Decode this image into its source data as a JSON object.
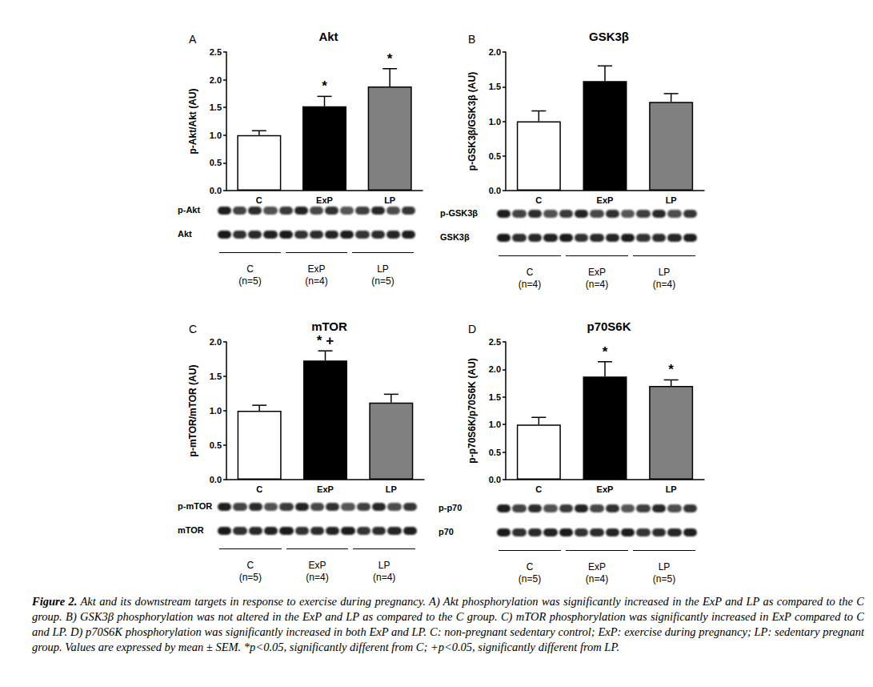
{
  "chart_data": [
    {
      "type": "bar",
      "panel": "A",
      "title": "Akt",
      "y_label": "p-Akt/Akt (AU)",
      "categories": [
        "C",
        "ExP",
        "LP"
      ],
      "values": [
        1.0,
        1.52,
        1.88
      ],
      "errors": [
        0.08,
        0.18,
        0.32
      ],
      "colors": [
        "#ffffff",
        "#000000",
        "#808080"
      ],
      "significance": [
        null,
        "*",
        "*"
      ],
      "ylim": [
        0,
        2.5
      ],
      "yticks": [
        {
          "value": 0,
          "label": "0.0"
        },
        0.5,
        {
          "value": 1,
          "label": "1.0"
        },
        1.5,
        {
          "value": 2,
          "label": "2.0"
        },
        2.5
      ],
      "grid": false,
      "blot": {
        "rows": [
          "p-Akt",
          "Akt"
        ],
        "groups": [
          {
            "name": "C",
            "n": "(n=5)"
          },
          {
            "name": "ExP",
            "n": "(n=4)"
          },
          {
            "name": "LP",
            "n": "(n=5)"
          }
        ]
      }
    },
    {
      "type": "bar",
      "panel": "B",
      "title": "GSK3β",
      "y_label": "p-GSK3β/GSK3β (AU)",
      "categories": [
        "C",
        "ExP",
        "LP"
      ],
      "values": [
        1.0,
        1.58,
        1.28
      ],
      "errors": [
        0.15,
        0.22,
        0.12
      ],
      "colors": [
        "#ffffff",
        "#000000",
        "#808080"
      ],
      "significance": [
        null,
        null,
        null
      ],
      "ylim": [
        0,
        2
      ],
      "yticks": [
        {
          "value": 0,
          "label": "0.0"
        },
        0.5,
        {
          "value": 1,
          "label": "1.0"
        },
        1.5,
        {
          "value": 2,
          "label": "2.0"
        }
      ],
      "grid": false,
      "blot": {
        "rows": [
          "p-GSK3β",
          "GSK3β"
        ],
        "groups": [
          {
            "name": "C",
            "n": "(n=4)"
          },
          {
            "name": "ExP",
            "n": "(n=4)"
          },
          {
            "name": "LP",
            "n": "(n=4)"
          }
        ]
      }
    },
    {
      "type": "bar",
      "panel": "C",
      "title": "mTOR",
      "y_label": "p-mTOR/mTOR (AU)",
      "categories": [
        "C",
        "ExP",
        "LP"
      ],
      "values": [
        1.0,
        1.73,
        1.12
      ],
      "errors": [
        0.08,
        0.14,
        0.12
      ],
      "colors": [
        "#ffffff",
        "#000000",
        "#808080"
      ],
      "significance": [
        null,
        "*+",
        null
      ],
      "ylim": [
        0,
        2
      ],
      "yticks": [
        {
          "value": 0,
          "label": "0.0"
        },
        0.5,
        {
          "value": 1,
          "label": "1.0"
        },
        1.5,
        {
          "value": 2,
          "label": "2.0"
        }
      ],
      "grid": false,
      "blot": {
        "rows": [
          "p-mTOR",
          "mTOR"
        ],
        "groups": [
          {
            "name": "C",
            "n": "(n=5)"
          },
          {
            "name": "ExP",
            "n": "(n=4)"
          },
          {
            "name": "LP",
            "n": "(n=4)"
          }
        ]
      }
    },
    {
      "type": "bar",
      "panel": "D",
      "title": "p70S6K",
      "y_label": "p-p70S6K/p70S6K (AU)",
      "categories": [
        "C",
        "ExP",
        "LP"
      ],
      "values": [
        1.0,
        1.87,
        1.7
      ],
      "errors": [
        0.13,
        0.27,
        0.11
      ],
      "colors": [
        "#ffffff",
        "#000000",
        "#808080"
      ],
      "significance": [
        null,
        "*",
        "*"
      ],
      "ylim": [
        0,
        2.5
      ],
      "yticks": [
        {
          "value": 0,
          "label": "0.0"
        },
        0.5,
        {
          "value": 1,
          "label": "1.0"
        },
        1.5,
        {
          "value": 2,
          "label": "2.0"
        },
        2.5
      ],
      "grid": false,
      "blot": {
        "rows": [
          "p-p70",
          "p70"
        ],
        "groups": [
          {
            "name": "C",
            "n": "(n=5)"
          },
          {
            "name": "ExP",
            "n": "(n=4)"
          },
          {
            "name": "LP",
            "n": "(n=5)"
          }
        ]
      }
    }
  ],
  "caption": {
    "label": "Figure 2.",
    "text": "Akt and its downstream targets in response to exercise during pregnancy. A) Akt phosphorylation was significantly increased in the ExP and LP as compared to the C group. B) GSK3β phosphorylation was not altered in the ExP and LP as compared to the C group. C) mTOR phosphorylation was significantly increased in ExP compared to C and LP. D) p70S6K phosphorylation was significantly increased in both ExP and LP. C: non-pregnant sedentary control; ExP: exercise during pregnancy; LP: sedentary pregnant group. Values are expressed by mean ± SEM. *p<0.05, significantly different from C; +p<0.05, significantly different from LP."
  }
}
